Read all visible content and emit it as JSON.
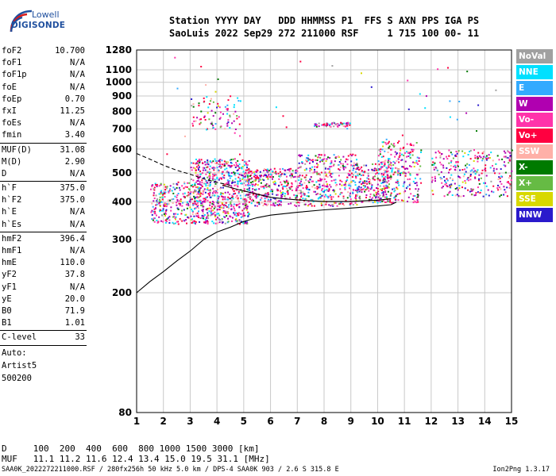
{
  "logo": {
    "brand": "Lowell",
    "product": "DIGISONDE"
  },
  "header": {
    "line1": "Station YYYY DAY   DDD HHMMSS P1  FFS S AXN PPS IGA PS",
    "line2": "SaoLuis 2022 Sep29 272 211000 RSF     1 715 100 00- 11"
  },
  "params": {
    "group1": [
      {
        "name": "foF2",
        "value": "10.700"
      },
      {
        "name": "foF1",
        "value": "N/A"
      },
      {
        "name": "foF1p",
        "value": "N/A"
      },
      {
        "name": "foE",
        "value": "N/A"
      },
      {
        "name": "foEp",
        "value": "0.70"
      },
      {
        "name": "fxI",
        "value": "11.25"
      },
      {
        "name": "foEs",
        "value": "N/A"
      },
      {
        "name": "fmin",
        "value": "3.40"
      }
    ],
    "group2": [
      {
        "name": "MUF(D)",
        "value": "31.08"
      },
      {
        "name": "M(D)",
        "value": "2.90"
      },
      {
        "name": "D",
        "value": "N/A"
      }
    ],
    "group3": [
      {
        "name": "h`F",
        "value": "375.0"
      },
      {
        "name": "h`F2",
        "value": "375.0"
      },
      {
        "name": "h`E",
        "value": "N/A"
      },
      {
        "name": "h`Es",
        "value": "N/A"
      }
    ],
    "group4": [
      {
        "name": "hmF2",
        "value": "396.4"
      },
      {
        "name": "hmF1",
        "value": "N/A"
      },
      {
        "name": "hmE",
        "value": "110.0"
      },
      {
        "name": "yF2",
        "value": "37.8"
      },
      {
        "name": "yF1",
        "value": "N/A"
      },
      {
        "name": "yE",
        "value": "20.0"
      },
      {
        "name": "B0",
        "value": "71.9"
      },
      {
        "name": "B1",
        "value": "1.01"
      }
    ],
    "group5": [
      {
        "name": "C-level",
        "value": "33"
      }
    ],
    "auto_lines": [
      "Auto:",
      "Artist5",
      "500200"
    ]
  },
  "legend": [
    {
      "label": "NoVal",
      "color": "#a0a0a0"
    },
    {
      "label": "NNE",
      "color": "#00e0ff"
    },
    {
      "label": "E",
      "color": "#33aaff"
    },
    {
      "label": "W",
      "color": "#b000b0"
    },
    {
      "label": "Vo-",
      "color": "#ff33aa"
    },
    {
      "label": "Vo+",
      "color": "#ff0040"
    },
    {
      "label": "SSW",
      "color": "#ffb0a8"
    },
    {
      "label": "X-",
      "color": "#007a00"
    },
    {
      "label": "X+",
      "color": "#66bb44"
    },
    {
      "label": "SSE",
      "color": "#d8d800"
    },
    {
      "label": "NNW",
      "color": "#2a1acc"
    }
  ],
  "footer": {
    "line1": "D     100  200  400  600  800 1000 1500 3000 [km]",
    "line2": "MUF   11.1 11.2 11.6 12.4 13.4 15.0 19.5 31.1 [MHz]",
    "line3": "SAA0K_2022272211000.RSF / 280fx256h 50 kHz 5.0 km / DPS-4 SAA0K 903 / 2.6 S 315.8 E",
    "version": "Ion2Png 1.3.17"
  },
  "chart_data": {
    "type": "scatter",
    "title": "",
    "xlabel": "",
    "ylabel": "",
    "x_ticks": [
      1,
      2,
      3,
      4,
      5,
      6,
      7,
      8,
      9,
      10,
      11,
      12,
      13,
      14,
      15
    ],
    "y_ticks": [
      80,
      200,
      300,
      400,
      500,
      600,
      700,
      800,
      900,
      1000,
      1100,
      1280
    ],
    "xlim": [
      1,
      15
    ],
    "y_scale": "log",
    "ylim": [
      80,
      1280
    ],
    "grid": true,
    "legend_position": "right",
    "traces": [
      {
        "style": "solid",
        "x": [
          1.0,
          1.5,
          2.0,
          2.5,
          3.0,
          3.5,
          4.0,
          4.5,
          5.0,
          5.5,
          6.0,
          7.0,
          8.0,
          9.0,
          10.0,
          10.5,
          10.7
        ],
        "y": [
          200,
          218,
          235,
          255,
          275,
          300,
          318,
          330,
          345,
          355,
          362,
          370,
          377,
          382,
          388,
          392,
          400
        ]
      },
      {
        "style": "solid",
        "x": [
          4.2,
          4.8,
          5.5,
          6.0,
          6.5,
          7.0,
          7.5,
          8.0,
          9.0,
          9.5,
          10.0,
          10.5
        ],
        "y": [
          455,
          440,
          425,
          415,
          410,
          407,
          404,
          402,
          402,
          404,
          406,
          410
        ]
      },
      {
        "style": "dashed",
        "x": [
          1.0,
          1.5,
          2.0,
          2.5,
          3.0,
          3.5,
          4.0,
          4.5
        ],
        "y": [
          580,
          555,
          530,
          510,
          495,
          478,
          465,
          455
        ]
      }
    ],
    "clusters": [
      {
        "x": [
          3.0,
          5.2
        ],
        "y": [
          340,
          560
        ],
        "n": 700
      },
      {
        "x": [
          1.5,
          3.0
        ],
        "y": [
          340,
          470
        ],
        "n": 220
      },
      {
        "x": [
          5.0,
          7.0
        ],
        "y": [
          390,
          520
        ],
        "n": 320
      },
      {
        "x": [
          7.0,
          9.2
        ],
        "y": [
          390,
          580
        ],
        "n": 380
      },
      {
        "x": [
          9.2,
          10.5
        ],
        "y": [
          400,
          540
        ],
        "n": 200
      },
      {
        "x": [
          10.0,
          11.6
        ],
        "y": [
          400,
          640
        ],
        "n": 260
      },
      {
        "x": [
          12.0,
          15.0
        ],
        "y": [
          420,
          600
        ],
        "n": 280
      },
      {
        "x": [
          7.6,
          9.0
        ],
        "y": [
          715,
          740
        ],
        "n": 60
      },
      {
        "x": [
          3.0,
          4.9
        ],
        "y": [
          700,
          900
        ],
        "n": 80
      },
      {
        "x": [
          2.0,
          15.0
        ],
        "y": [
          500,
          1250
        ],
        "n": 50
      }
    ]
  }
}
